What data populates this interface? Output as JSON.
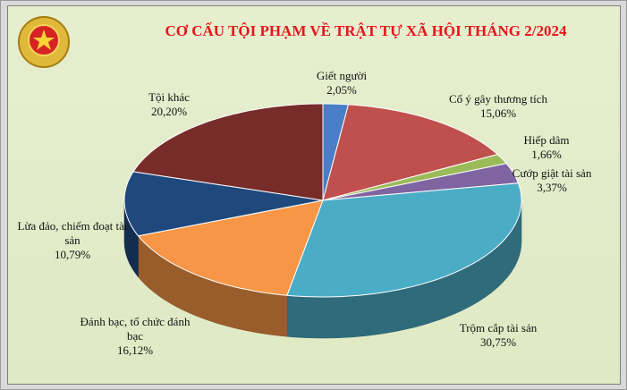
{
  "chart_data": {
    "type": "pie",
    "title": "CƠ CẤU TỘI PHẠM VỀ TRẬT TỰ XÃ HỘI THÁNG 2/2024",
    "categories": [
      "Giết người",
      "Cố ý gây thương tích",
      "Hiếp dâm",
      "Cướp giật tài sản",
      "Trộm cắp tài sản",
      "Đánh bạc, tổ chức đánh bạc",
      "Lừa đảo, chiếm đoạt tài sản",
      "Tội khác"
    ],
    "values": [
      2.05,
      15.06,
      1.66,
      3.37,
      30.75,
      16.12,
      10.79,
      20.2
    ],
    "value_labels": [
      "2,05%",
      "15,06%",
      "1,66%",
      "3,37%",
      "30,75%",
      "16,12%",
      "10,79%",
      "20,20%"
    ],
    "colors": [
      "#4a7ec6",
      "#c0504d",
      "#9bbb59",
      "#8064a2",
      "#4bacc6",
      "#f79646",
      "#1f497d",
      "#772c2a"
    ]
  }
}
